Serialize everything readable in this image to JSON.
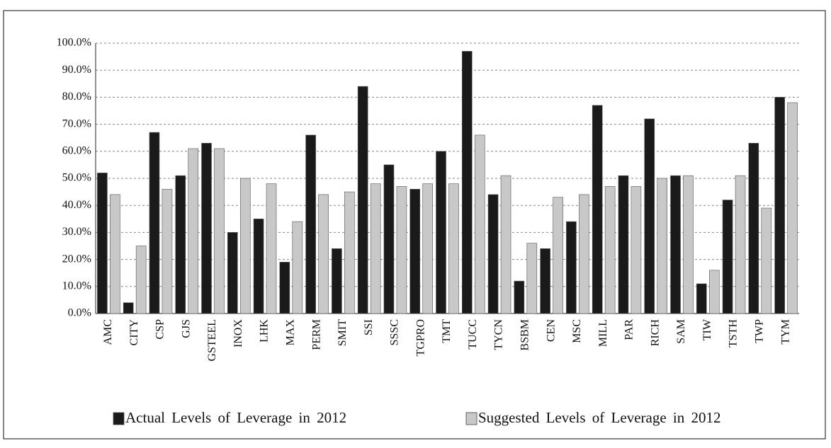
{
  "chart_data": {
    "type": "bar",
    "categories": [
      "AMC",
      "CITY",
      "CSP",
      "GJS",
      "GSTEEL",
      "INOX",
      "LHK",
      "MAX",
      "PERM",
      "SMIT",
      "SSI",
      "SSSC",
      "TGPRO",
      "TMT",
      "TUCC",
      "TYCN",
      "BSBM",
      "CEN",
      "MSC",
      "MILL",
      "PAR",
      "RICH",
      "SAM",
      "TIW",
      "TSTH",
      "TWP",
      "TYM"
    ],
    "series": [
      {
        "name": "Actual Levels of Leverage in 2012",
        "color": "#1a1a1a",
        "values": [
          52,
          4,
          67,
          51,
          63,
          30,
          35,
          19,
          66,
          24,
          84,
          55,
          46,
          60,
          97,
          44,
          12,
          24,
          34,
          77,
          51,
          72,
          51,
          11,
          42,
          63,
          80
        ]
      },
      {
        "name": "Suggested Levels of Leverage in 2012",
        "color": "#c8c8c8",
        "values": [
          44,
          25,
          46,
          61,
          61,
          50,
          48,
          34,
          44,
          45,
          48,
          47,
          48,
          48,
          66,
          51,
          26,
          43,
          44,
          47,
          47,
          50,
          51,
          16,
          51,
          39,
          78
        ]
      }
    ],
    "ylim": [
      0,
      100
    ],
    "yticks": [
      {
        "value": 0,
        "label": "0.0%"
      },
      {
        "value": 10,
        "label": "10.0%"
      },
      {
        "value": 20,
        "label": "20.0%"
      },
      {
        "value": 30,
        "label": "30.0%"
      },
      {
        "value": 40,
        "label": "40.0%"
      },
      {
        "value": 50,
        "label": "50.0%"
      },
      {
        "value": 60,
        "label": "60.0%"
      },
      {
        "value": 70,
        "label": "70.0%"
      },
      {
        "value": 80,
        "label": "80.0%"
      },
      {
        "value": 90,
        "label": "90.0%"
      },
      {
        "value": 100,
        "label": "100.0%"
      }
    ],
    "grid": true,
    "legend": "bottom"
  }
}
